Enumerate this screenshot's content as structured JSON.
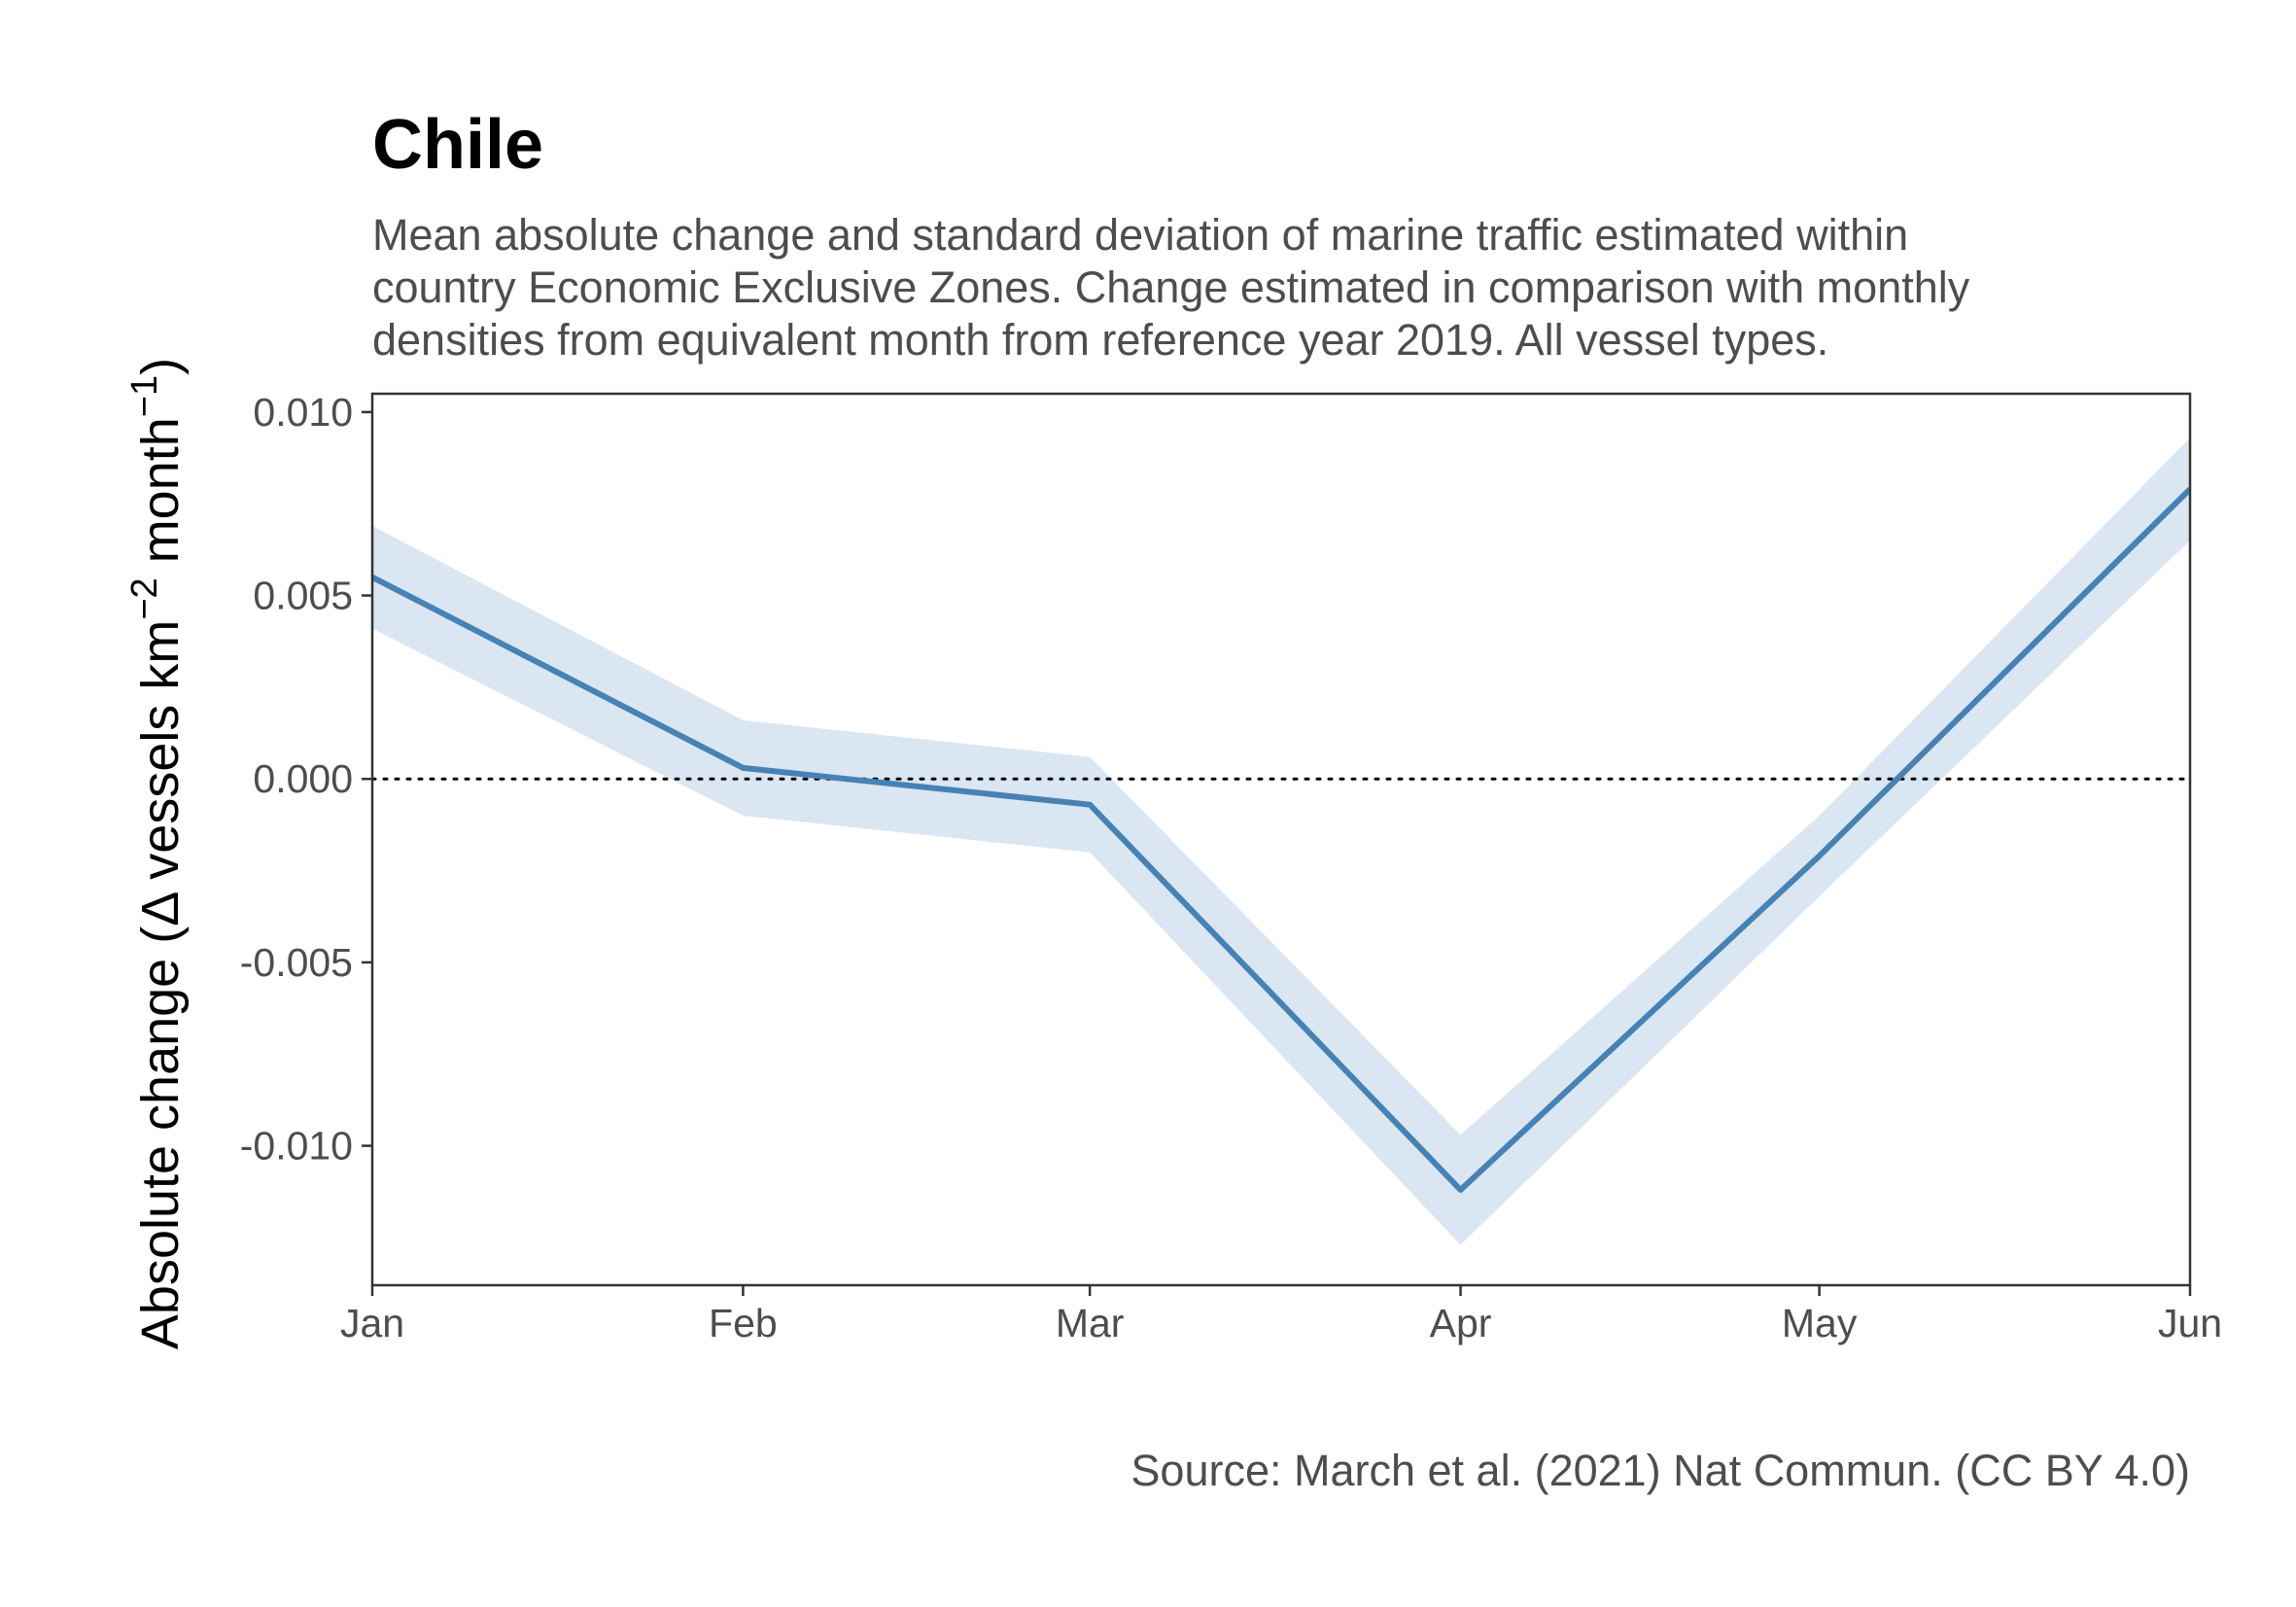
{
  "chart_data": {
    "type": "line",
    "title": "Chile",
    "subtitle": [
      "Mean absolute change and standard deviation of marine traffic estimated within",
      "country Economic Exclusive Zones. Change estimated in comparison with monthly",
      "densities from equivalent month from reference year 2019. All vessel types."
    ],
    "ylabel": {
      "prefix": "Absolute change (",
      "delta": "Δ",
      "units_a": " vessels km",
      "sup_a": "−2",
      "units_b": " month",
      "sup_b": "−1",
      "suffix": ")"
    },
    "xlabel": "",
    "caption": "Source: March et al. (2021) Nat Commun. (CC BY 4.0)",
    "x_dates": [
      "2020-01-01",
      "2020-02-01",
      "2020-03-01",
      "2020-04-01",
      "2020-05-01",
      "2020-06-01"
    ],
    "x_tick_labels": [
      "Jan",
      "Feb",
      "Mar",
      "Apr",
      "May",
      "Jun"
    ],
    "series": [
      {
        "mean": [
          0.0055,
          0.0003,
          -0.0007,
          -0.0112,
          -0.0021,
          0.0079
        ],
        "sd": [
          0.0014,
          0.0013,
          0.0013,
          0.0015,
          0.0011,
          0.0014
        ]
      }
    ],
    "ylim": [
      -0.0138,
      0.0105
    ],
    "yticks": [
      0.01,
      0.005,
      0.0,
      -0.005,
      -0.01
    ],
    "ytick_labels": [
      "0.010",
      "0.005",
      "0.000",
      "-0.005",
      "-0.010"
    ],
    "reference_line": {
      "y": 0,
      "style": "dotted"
    },
    "grid": false,
    "colors": {
      "line": "#4682b4",
      "ribbon": "#dae6f1",
      "reference": "#000000",
      "axis": "#333333"
    }
  }
}
